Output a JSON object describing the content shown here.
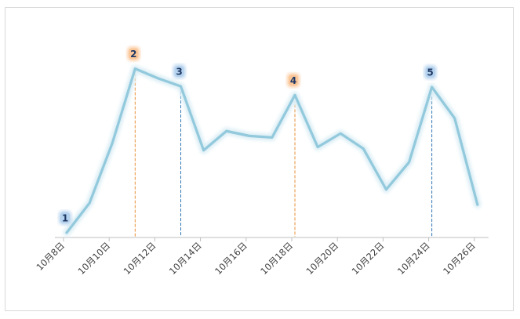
{
  "chart_data": {
    "type": "line",
    "title": "",
    "xlabel": "",
    "ylabel": "",
    "x": [
      "10月8日",
      "10月9日",
      "10月10日",
      "10月11日",
      "10月12日",
      "10月13日",
      "10月14日",
      "10月15日",
      "10月16日",
      "10月17日",
      "10月18日",
      "10月19日",
      "10月20日",
      "10月21日",
      "10月22日",
      "10月23日",
      "10月24日",
      "10月25日",
      "10月26日"
    ],
    "tick_labels": [
      "10月8日",
      "10月10日",
      "10月12日",
      "10月14日",
      "10月16日",
      "10月18日",
      "10月20日",
      "10月22日",
      "10月24日",
      "10月26日"
    ],
    "series": [
      {
        "values": [
          5,
          42,
          117,
          210,
          198,
          188,
          108,
          132,
          126,
          124,
          177,
          112,
          129,
          110,
          59,
          93,
          187,
          148,
          40
        ],
        "color": "#92c9dc"
      }
    ],
    "ylim": [
      0,
      240
    ],
    "grid": false,
    "legend": "none",
    "annotations": [
      {
        "label": "1",
        "x": "10月8日",
        "value": 5,
        "style": "blue",
        "guide": false
      },
      {
        "label": "2",
        "x": "10月11日",
        "value": 210,
        "style": "orange",
        "guide": true
      },
      {
        "label": "3",
        "x": "10月13日",
        "value": 188,
        "style": "blue",
        "guide": true
      },
      {
        "label": "4",
        "x": "10月18日",
        "value": 177,
        "style": "orange",
        "guide": true
      },
      {
        "label": "5",
        "x": "10月24日",
        "value": 187,
        "style": "blue",
        "guide": true
      }
    ],
    "colors": {
      "line": "#92c9dc",
      "line_glow": "#dbeef5",
      "orange_badge": "#fbc79a",
      "blue_badge": "#b5d2ee",
      "orange_guide": "#e8923a",
      "blue_guide": "#2e75b6",
      "axis": "#bfbfbf"
    }
  }
}
